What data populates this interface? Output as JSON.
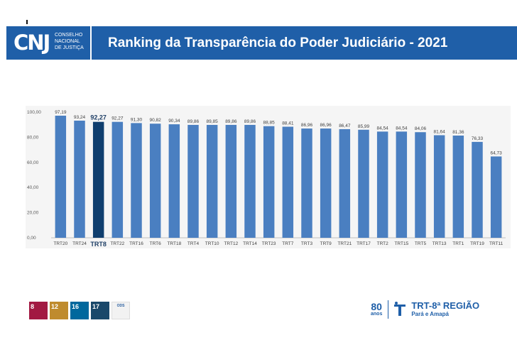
{
  "header": {
    "logo_mark": "CNJ",
    "logo_lines": [
      "CONSELHO",
      "NACIONAL",
      "DE JUSTIÇA"
    ],
    "title": "Ranking da Transparência do Poder Judiciário - 2021"
  },
  "colors": {
    "header_bg": "#1f5fa8",
    "bar": "#4a7fc1",
    "highlight_bar": "#0f3e6e"
  },
  "chart_data": {
    "type": "bar",
    "categories": [
      "TRT20",
      "TRT24",
      "TRT8",
      "TRT22",
      "TRT16",
      "TRT6",
      "TRT18",
      "TRT4",
      "TRT10",
      "TRT12",
      "TRT14",
      "TRT23",
      "TRT7",
      "TRT3",
      "TRT9",
      "TRT21",
      "TRT17",
      "TRT2",
      "TRT15",
      "TRT5",
      "TRT13",
      "TRT1",
      "TRT19",
      "TRT11"
    ],
    "values": [
      97.19,
      93.24,
      92.27,
      92.27,
      91.3,
      90.82,
      90.34,
      89.86,
      89.85,
      89.86,
      89.86,
      88.85,
      88.41,
      86.96,
      86.96,
      86.47,
      85.99,
      84.54,
      84.54,
      84.06,
      81.64,
      81.36,
      76.33,
      64.73
    ],
    "value_labels": [
      "97,19",
      "93,24",
      "92,27",
      "92,27",
      "91,30",
      "90,82",
      "90,34",
      "89,86",
      "89,85",
      "89,86",
      "89,86",
      "88,85",
      "88,41",
      "86,96",
      "86,96",
      "86,47",
      "85,99",
      "84,54",
      "84,54",
      "84,06",
      "81,64",
      "81,36",
      "76,33",
      "64,73"
    ],
    "highlight": "TRT8",
    "ylim": [
      0,
      100
    ],
    "yticks": [
      "0,00",
      "20,00",
      "40,00",
      "60,00",
      "80,00",
      "100,00"
    ],
    "grid": false,
    "title": "",
    "xlabel": "",
    "ylabel": ""
  },
  "footer": {
    "ods": [
      {
        "num": "8",
        "text": "",
        "color": "#a21942"
      },
      {
        "num": "12",
        "text": "",
        "color": "#bf8b2e"
      },
      {
        "num": "16",
        "text": "",
        "color": "#00689d"
      },
      {
        "num": "17",
        "text": "",
        "color": "#19486a"
      }
    ],
    "ods_extra": "ODS",
    "anos": "80",
    "anos_word": "anos",
    "trt_name": "TRT-8ª REGIÃO",
    "trt_sub": "Pará e Amapá"
  }
}
